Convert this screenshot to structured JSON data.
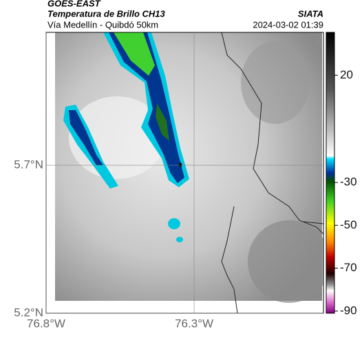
{
  "header": {
    "source": "GOES-EAST",
    "title": "Temperatura de Brillo CH13",
    "brand": "SIATA",
    "route": "Vía Medellín - Quibdó 50km",
    "timestamp": "2024-03-02 01:39"
  },
  "map": {
    "xlim": [
      -76.8,
      -75.863
    ],
    "ylim": [
      5.2,
      6.149
    ],
    "xticks": [
      {
        "value": -76.8,
        "label": "76.8°W"
      },
      {
        "value": -76.3,
        "label": "76.3°W"
      }
    ],
    "yticks": [
      {
        "value": 5.7,
        "label": "5.7°N"
      },
      {
        "value": 5.2,
        "label": "5.2°N"
      }
    ]
  },
  "colorbar": {
    "lim": [
      40,
      -91
    ],
    "ticks": [
      20,
      -30,
      -50,
      -70,
      -90
    ]
  }
}
